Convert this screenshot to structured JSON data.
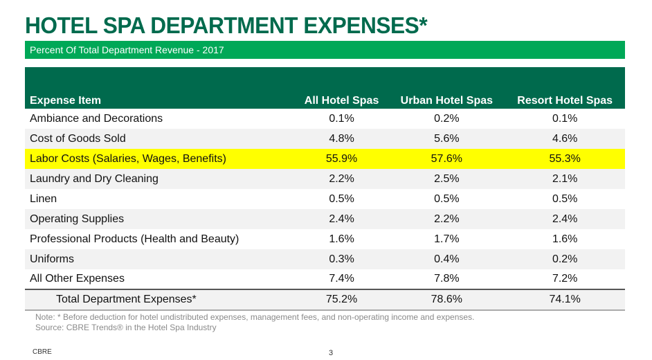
{
  "title": "HOTEL SPA DEPARTMENT EXPENSES*",
  "subtitle": "Percent Of Total Department Revenue - 2017",
  "colors": {
    "title": "#006a4d",
    "subtitle_bar": "#00a857",
    "header": "#006a4d",
    "highlight": "#ffff00"
  },
  "table": {
    "headers": [
      "Expense Item",
      "All Hotel Spas",
      "Urban Hotel Spas",
      "Resort Hotel Spas"
    ],
    "rows": [
      [
        "Ambiance and Decorations",
        "0.1%",
        "0.2%",
        "0.1%"
      ],
      [
        "Cost of Goods Sold",
        "4.8%",
        "5.6%",
        "4.6%"
      ],
      [
        "Labor Costs (Salaries, Wages, Benefits)",
        "55.9%",
        "57.6%",
        "55.3%"
      ],
      [
        "Laundry and Dry Cleaning",
        "2.2%",
        "2.5%",
        "2.1%"
      ],
      [
        "Linen",
        "0.5%",
        "0.5%",
        "0.5%"
      ],
      [
        "Operating Supplies",
        "2.4%",
        "2.2%",
        "2.4%"
      ],
      [
        "Professional Products (Health and Beauty)",
        "1.6%",
        "1.7%",
        "1.6%"
      ],
      [
        "Uniforms",
        "0.3%",
        "0.4%",
        "0.2%"
      ],
      [
        "All Other Expenses",
        "7.4%",
        "7.8%",
        "7.2%"
      ]
    ],
    "total": [
      "Total Department Expenses*",
      "75.2%",
      "78.6%",
      "74.1%"
    ]
  },
  "note": "Note: * Before deduction for hotel undistributed expenses, management fees, and non-operating income and expenses.",
  "source": "Source: CBRE Trends® in the Hotel Spa Industry",
  "footer": "CBRE",
  "page_number": "3"
}
